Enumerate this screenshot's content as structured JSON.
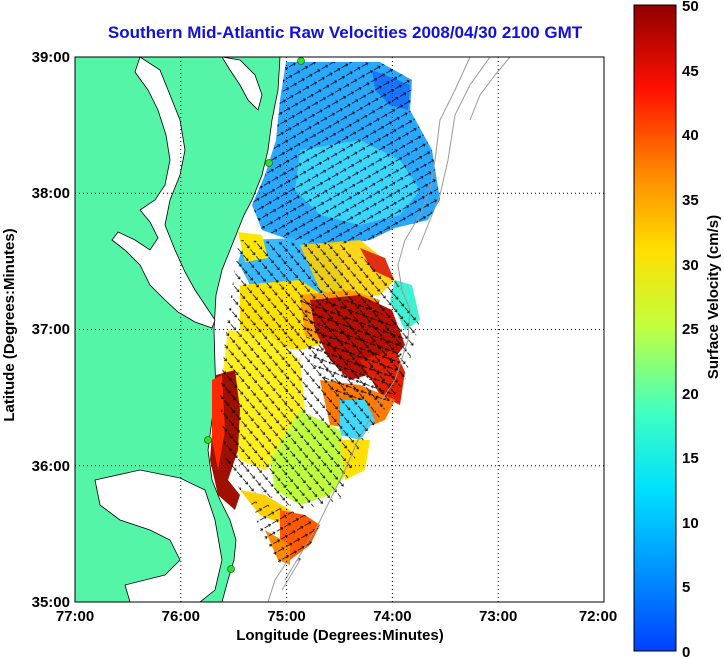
{
  "title": "Southern Mid-Atlantic Raw Velocities 2008/04/30 2100 GMT",
  "axes": {
    "x_label": "Longitude (Degrees:Minutes)",
    "y_label": "Latitude (Degrees:Minutes)",
    "x_ticks": [
      "77:00",
      "76:00",
      "75:00",
      "74:00",
      "73:00",
      "72:00"
    ],
    "y_ticks": [
      "39:00",
      "38:00",
      "37:00",
      "36:00",
      "35:00"
    ],
    "x_range_deg_west": [
      77,
      72
    ],
    "y_range_deg_north": [
      35,
      39
    ],
    "grid": "dotted"
  },
  "colorbar": {
    "label": "Surface Velocity (cm/s)",
    "ticks": [
      "50",
      "45",
      "40",
      "35",
      "30",
      "25",
      "20",
      "15",
      "10",
      "5",
      "0"
    ],
    "range": [
      0,
      50
    ],
    "colormap": "jet"
  },
  "colors": {
    "land": "#55f5a8",
    "title": "#1010e0",
    "stations": "#33dd33"
  },
  "map_features": [
    "land-mass",
    "chesapeake-bay",
    "delaware-bay",
    "shoreline",
    "bathymetry-contours",
    "hf-radar-stations",
    "velocity-field",
    "velocity-vectors"
  ]
}
